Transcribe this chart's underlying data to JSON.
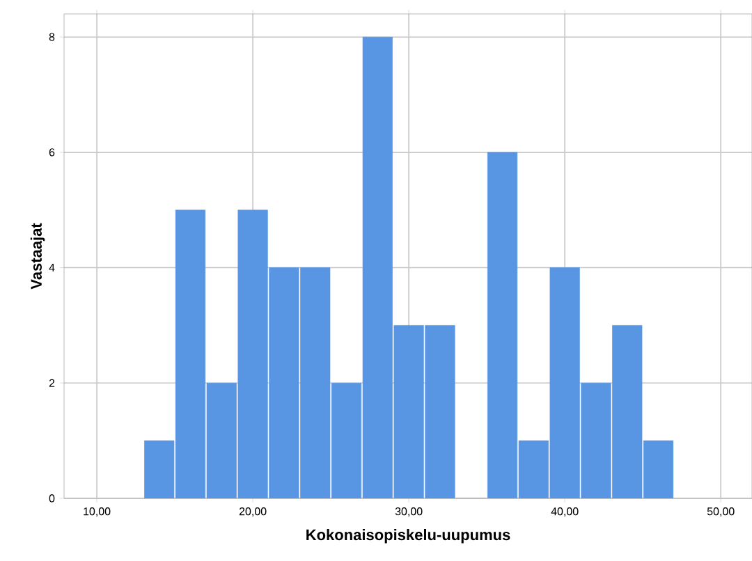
{
  "chart_data": {
    "type": "histogram",
    "xlabel": "Kokonaisopiskelu-uupumus",
    "ylabel": "Vastaajat",
    "bins": [
      13,
      15,
      17,
      19,
      21,
      23,
      25,
      27,
      29,
      31,
      33,
      35,
      37,
      39,
      41,
      43,
      45,
      47
    ],
    "values": [
      1,
      5,
      2,
      5,
      4,
      4,
      2,
      8,
      3,
      3,
      0,
      6,
      1,
      4,
      2,
      3,
      1
    ],
    "color": "#5895e3",
    "xlim": [
      7.9,
      52
    ],
    "ylim": [
      0,
      8.4
    ],
    "xticks": [
      {
        "value": 10,
        "label": "10,00"
      },
      {
        "value": 20,
        "label": "20,00"
      },
      {
        "value": 30,
        "label": "30,00"
      },
      {
        "value": 40,
        "label": "40,00"
      },
      {
        "value": 50,
        "label": "50,00"
      }
    ],
    "yticks": [
      0,
      2,
      4,
      6,
      8
    ],
    "grid": true
  }
}
